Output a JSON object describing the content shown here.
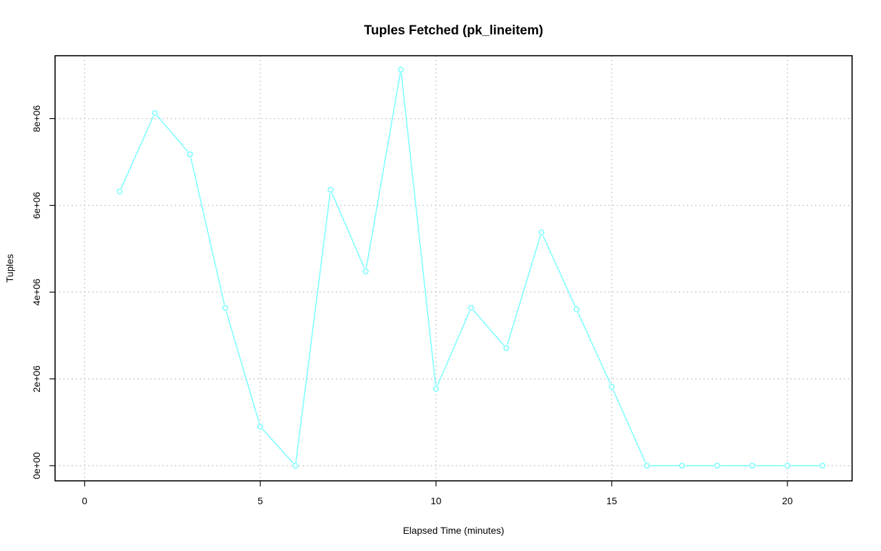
{
  "chart_data": {
    "type": "line",
    "title": "Tuples Fetched (pk_lineitem)",
    "xlabel": "Elapsed Time (minutes)",
    "ylabel": "Tuples",
    "xlim": [
      -0.84,
      21.84
    ],
    "ylim": [
      -350000,
      9450000
    ],
    "x_ticks": [
      0,
      5,
      10,
      15,
      20
    ],
    "x_tick_labels": [
      "0",
      "5",
      "10",
      "15",
      "20"
    ],
    "y_ticks": [
      0,
      2000000,
      4000000,
      6000000,
      8000000
    ],
    "y_tick_labels": [
      "0e+00",
      "2e+06",
      "4e+06",
      "6e+06",
      "8e+06"
    ],
    "grid": true,
    "series": [
      {
        "color": "#7fffff",
        "x": [
          1,
          2,
          3,
          4,
          5,
          6,
          7,
          8,
          9,
          10,
          11,
          12,
          13,
          14,
          15,
          16,
          17,
          18,
          19,
          20,
          21
        ],
        "y": [
          6320000,
          8130000,
          7180000,
          3640000,
          900000,
          0,
          6360000,
          4480000,
          9130000,
          1770000,
          3640000,
          2710000,
          5380000,
          3600000,
          1820000,
          0,
          0,
          0,
          0,
          0,
          0
        ]
      }
    ]
  }
}
